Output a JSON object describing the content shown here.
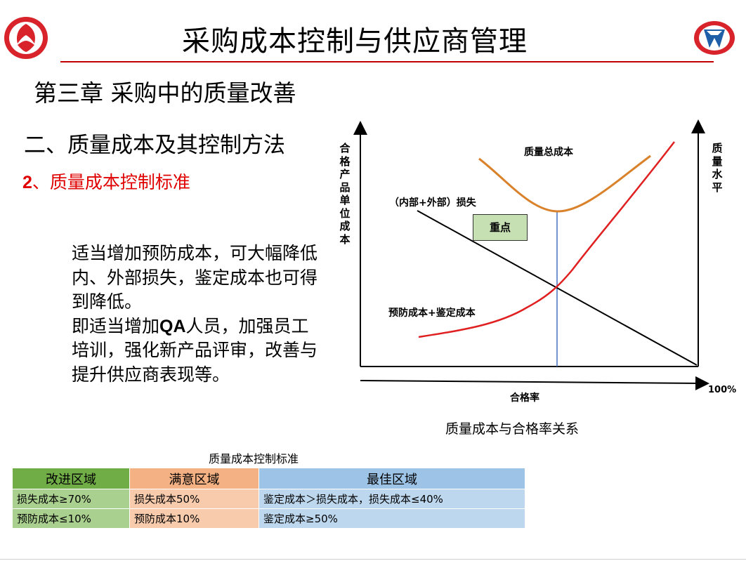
{
  "header": {
    "title": "采购成本控制与供应商管理",
    "logo_left_icon": "dongfeng-logo-icon",
    "logo_right_icon": "company-emblem-icon",
    "accent_color": "#c00000"
  },
  "chapter": "第三章  采购中的质量改善",
  "section": "二、质量成本及其控制方法",
  "subsection": {
    "num": "2",
    "text": "、质量成本控制标准",
    "color": "#e00000"
  },
  "body": {
    "p1": "适当增加预防成本，可大幅降低内、外部损失，鉴定成本也可得到降低。",
    "p2_pre": "即适当增加",
    "p2_qa": "QA",
    "p2_post": "人员，加强员工培训，强化新产品评审，改善与提升供应商表现等。"
  },
  "diagram": {
    "y_axis_label": "合格产品单位成本",
    "y2_axis_label": "质量水平",
    "x_axis_label": "合格率",
    "x_end_label": "100%",
    "curves": {
      "total": {
        "label": "质量总成本",
        "color": "#d9822b"
      },
      "loss": {
        "label": "（内部+外部）损失",
        "color": "#000000"
      },
      "prevention": {
        "label": "预防成本+鉴定成本",
        "color": "#e02020"
      }
    },
    "key_box": "重点",
    "optimum_line_color": "#4472c4",
    "caption": "质量成本与合格率关系"
  },
  "table": {
    "caption": "质量成本控制标准",
    "headers": [
      "改进区域",
      "满意区域",
      "最佳区域"
    ],
    "rows": [
      [
        "损失成本≥70%",
        "损失成本50%",
        "鉴定成本＞损失成本，损失成本≤40%"
      ],
      [
        "预防成本≤10%",
        "预防成本10%",
        "鉴定成本≥50%"
      ]
    ]
  }
}
